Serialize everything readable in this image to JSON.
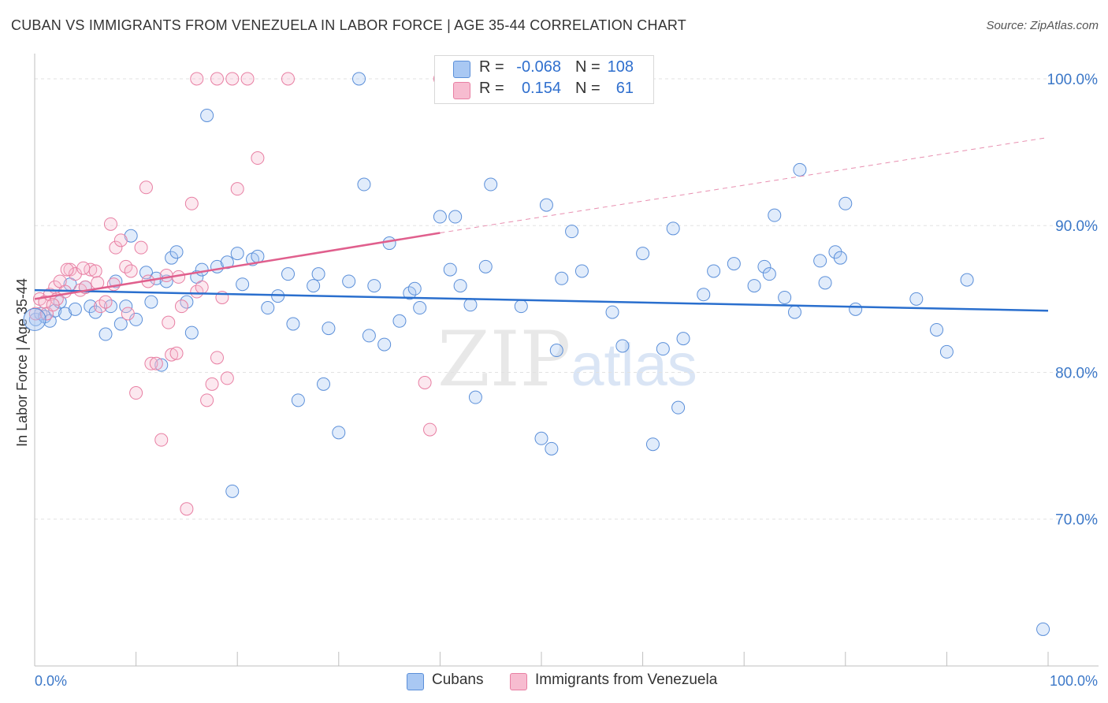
{
  "header": {
    "title": "CUBAN VS IMMIGRANTS FROM VENEZUELA IN LABOR FORCE | AGE 35-44 CORRELATION CHART",
    "source": "Source: ZipAtlas.com"
  },
  "watermark": {
    "zip": "ZIP",
    "atlas": "atlas"
  },
  "legend": {
    "rows": [
      {
        "r_label": "R =",
        "r_value": "-0.068",
        "n_label": "N =",
        "n_value": "108",
        "color": "#a9c8f3"
      },
      {
        "r_label": "R =",
        "r_value": "0.154",
        "n_label": "N =",
        "n_value": "61",
        "color": "#f7bcd0"
      }
    ]
  },
  "bottom_legend": {
    "items": [
      {
        "label": "Cubans",
        "color": "#a9c8f3"
      },
      {
        "label": "Immigrants from Venezuela",
        "color": "#f7bcd0"
      }
    ]
  },
  "chart_data": {
    "type": "scatter",
    "title": "CUBAN VS IMMIGRANTS FROM VENEZUELA IN LABOR FORCE | AGE 35-44 CORRELATION CHART",
    "xlabel": "",
    "ylabel": "In Labor Force | Age 35-44",
    "xlim": [
      0,
      100
    ],
    "ylim": [
      60,
      101.5
    ],
    "x_tick_labels": [
      "0.0%",
      "100.0%"
    ],
    "y_ticks": [
      70,
      80,
      90,
      100
    ],
    "y_tick_labels": [
      "70.0%",
      "80.0%",
      "90.0%",
      "100.0%"
    ],
    "grid": true,
    "legend_position": "top-center",
    "colors": {
      "cubans": "#5b8fd9",
      "venezuela": "#e87fa3",
      "cubans_line": "#2a6fce",
      "venezuela_line": "#e05f8d"
    },
    "series": [
      {
        "name": "Cubans",
        "trend": {
          "x0": 0,
          "y0": 85.6,
          "x1": 100,
          "y1": 84.2,
          "style": "solid"
        },
        "points": [
          [
            0.1,
            83.6
          ],
          [
            0.6,
            84
          ],
          [
            1,
            83.8
          ],
          [
            1.5,
            83.5
          ],
          [
            2,
            84.2
          ],
          [
            2.5,
            84.8
          ],
          [
            3,
            84
          ],
          [
            3.5,
            86
          ],
          [
            4,
            84.3
          ],
          [
            5,
            85.8
          ],
          [
            5.5,
            84.5
          ],
          [
            6,
            84.1
          ],
          [
            7,
            82.6
          ],
          [
            7.5,
            84.5
          ],
          [
            8,
            86.2
          ],
          [
            8.5,
            83.3
          ],
          [
            9,
            84.5
          ],
          [
            9.5,
            89.3
          ],
          [
            10,
            83.6
          ],
          [
            11,
            86.8
          ],
          [
            11.5,
            84.8
          ],
          [
            12,
            86.4
          ],
          [
            12.5,
            80.5
          ],
          [
            13,
            86.2
          ],
          [
            13.5,
            87.8
          ],
          [
            14,
            88.2
          ],
          [
            15,
            84.8
          ],
          [
            15.5,
            82.7
          ],
          [
            16,
            86.5
          ],
          [
            16.5,
            87
          ],
          [
            17,
            97.5
          ],
          [
            18,
            87.2
          ],
          [
            19,
            87.5
          ],
          [
            19.5,
            71.9
          ],
          [
            20,
            88.1
          ],
          [
            20.5,
            86
          ],
          [
            21.5,
            87.7
          ],
          [
            22,
            87.9
          ],
          [
            23,
            84.4
          ],
          [
            24,
            85.2
          ],
          [
            25,
            86.7
          ],
          [
            25.5,
            83.3
          ],
          [
            26,
            78.1
          ],
          [
            27.5,
            85.9
          ],
          [
            28,
            86.7
          ],
          [
            28.5,
            79.2
          ],
          [
            29,
            83
          ],
          [
            30,
            75.9
          ],
          [
            31,
            86.2
          ],
          [
            32,
            100
          ],
          [
            32.5,
            92.8
          ],
          [
            33,
            82.5
          ],
          [
            33.5,
            85.9
          ],
          [
            34.5,
            81.9
          ],
          [
            35,
            88.8
          ],
          [
            36,
            83.5
          ],
          [
            37,
            85.4
          ],
          [
            37.5,
            85.7
          ],
          [
            38,
            84.4
          ],
          [
            40,
            90.6
          ],
          [
            41,
            87
          ],
          [
            41.5,
            90.6
          ],
          [
            42,
            85.9
          ],
          [
            43,
            84.6
          ],
          [
            43.5,
            78.3
          ],
          [
            44.5,
            87.2
          ],
          [
            45,
            92.8
          ],
          [
            48,
            84.5
          ],
          [
            50,
            75.5
          ],
          [
            50.5,
            91.4
          ],
          [
            51,
            74.8
          ],
          [
            51.5,
            81.5
          ],
          [
            52,
            86.4
          ],
          [
            53,
            89.6
          ],
          [
            54,
            86.9
          ],
          [
            57,
            84.1
          ],
          [
            58,
            81.8
          ],
          [
            60,
            88.1
          ],
          [
            61,
            75.1
          ],
          [
            62,
            81.6
          ],
          [
            63,
            89.8
          ],
          [
            63.5,
            77.6
          ],
          [
            64,
            82.3
          ],
          [
            66,
            85.3
          ],
          [
            67,
            86.9
          ],
          [
            69,
            87.4
          ],
          [
            71,
            85.9
          ],
          [
            72,
            87.2
          ],
          [
            72.5,
            86.7
          ],
          [
            73,
            90.7
          ],
          [
            74,
            85.1
          ],
          [
            75,
            84.1
          ],
          [
            75.5,
            93.8
          ],
          [
            77.5,
            87.6
          ],
          [
            78,
            86.1
          ],
          [
            79,
            88.2
          ],
          [
            79.5,
            87.8
          ],
          [
            80,
            91.5
          ],
          [
            81,
            84.3
          ],
          [
            87,
            85
          ],
          [
            89,
            82.9
          ],
          [
            90,
            81.4
          ],
          [
            92,
            86.3
          ],
          [
            99.5,
            62.5
          ]
        ]
      },
      {
        "name": "Immigrants from Venezuela",
        "trend": {
          "x0": 0,
          "y0": 85,
          "x1": 40,
          "y1": 89.5,
          "dashed_to_x": 100,
          "dashed_to_y": 96
        },
        "points": [
          [
            0.1,
            84
          ],
          [
            0.5,
            85
          ],
          [
            1,
            84.8
          ],
          [
            1.2,
            84
          ],
          [
            1.5,
            85.3
          ],
          [
            2,
            85.8
          ],
          [
            2.5,
            86.2
          ],
          [
            3,
            85.5
          ],
          [
            3.5,
            87
          ],
          [
            4,
            86.7
          ],
          [
            4.5,
            85.6
          ],
          [
            5,
            85.8
          ],
          [
            5.5,
            87
          ],
          [
            6,
            86.9
          ],
          [
            6.5,
            84.5
          ],
          [
            7,
            84.8
          ],
          [
            7.5,
            90.1
          ],
          [
            8,
            88.5
          ],
          [
            8.5,
            89
          ],
          [
            9,
            87.2
          ],
          [
            9.5,
            86.9
          ],
          [
            10,
            78.6
          ],
          [
            10.5,
            88.5
          ],
          [
            11,
            92.6
          ],
          [
            11.5,
            80.6
          ],
          [
            12,
            80.6
          ],
          [
            12.5,
            75.4
          ],
          [
            13,
            86.6
          ],
          [
            13.5,
            81.2
          ],
          [
            14,
            81.3
          ],
          [
            14.5,
            84.5
          ],
          [
            15,
            70.7
          ],
          [
            15.5,
            91.5
          ],
          [
            16,
            85.5
          ],
          [
            16.5,
            85.8
          ],
          [
            17,
            78.1
          ],
          [
            17.5,
            79.2
          ],
          [
            18,
            81
          ],
          [
            18.5,
            85.1
          ],
          [
            19,
            79.6
          ],
          [
            20,
            92.5
          ],
          [
            22,
            94.6
          ],
          [
            16,
            100
          ],
          [
            18,
            100
          ],
          [
            19.5,
            100
          ],
          [
            21,
            100
          ],
          [
            25,
            100
          ],
          [
            38.5,
            79.3
          ],
          [
            39,
            76.1
          ],
          [
            40,
            100
          ],
          [
            2.2,
            85
          ],
          [
            3.2,
            87
          ],
          [
            6.2,
            86.1
          ],
          [
            9.2,
            84
          ],
          [
            11.2,
            86.2
          ],
          [
            13.2,
            83.4
          ],
          [
            14.2,
            86.5
          ],
          [
            1.8,
            84.6
          ],
          [
            4.8,
            87.1
          ],
          [
            7.8,
            86
          ]
        ]
      }
    ]
  }
}
